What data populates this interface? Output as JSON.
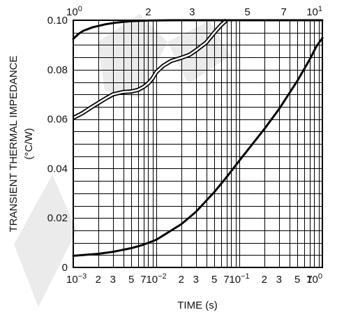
{
  "chart_data": {
    "type": "line",
    "ylabel_line1": "TRANSIENT THERMAL IMPEDANCE",
    "ylabel_line2": "(°C/W)",
    "xlabel": "TIME (s)",
    "ylim": [
      0,
      0.1
    ],
    "yticks": [
      {
        "value": 0,
        "label": "0"
      },
      {
        "value": 0.02,
        "label": "0.02"
      },
      {
        "value": 0.04,
        "label": "0.04"
      },
      {
        "value": 0.06,
        "label": "0.06"
      },
      {
        "value": 0.08,
        "label": "0.08"
      },
      {
        "value": 0.1,
        "label": "0.10"
      }
    ],
    "bottom_axis": {
      "scale": "log",
      "range": [
        0.001,
        1
      ],
      "labels": [
        {
          "value": 0.001,
          "base": "10",
          "exp": "−3"
        },
        {
          "value": 0.002,
          "base": "2"
        },
        {
          "value": 0.003,
          "base": "3"
        },
        {
          "value": 0.005,
          "base": "5"
        },
        {
          "value": 0.007,
          "base": "7"
        },
        {
          "value": 0.01,
          "base": "10",
          "exp": "−2"
        },
        {
          "value": 0.02,
          "base": "2"
        },
        {
          "value": 0.03,
          "base": "3"
        },
        {
          "value": 0.05,
          "base": "5"
        },
        {
          "value": 0.07,
          "base": "7"
        },
        {
          "value": 0.1,
          "base": "10",
          "exp": "−1"
        },
        {
          "value": 0.2,
          "base": "2"
        },
        {
          "value": 0.3,
          "base": "3"
        },
        {
          "value": 0.5,
          "base": "5"
        },
        {
          "value": 0.7,
          "base": "7"
        },
        {
          "value": 1,
          "base": "10",
          "exp": "0"
        }
      ]
    },
    "top_axis": {
      "scale": "log",
      "range": [
        1,
        10
      ],
      "labels": [
        {
          "value": 1,
          "base": "10",
          "exp": "0"
        },
        {
          "value": 2,
          "base": "2"
        },
        {
          "value": 3,
          "base": "3"
        },
        {
          "value": 5,
          "base": "5"
        },
        {
          "value": 7,
          "base": "7"
        },
        {
          "value": 10,
          "base": "10",
          "exp": "1"
        }
      ]
    },
    "grid": true,
    "series": [
      {
        "style": "solid",
        "axis": "bottom",
        "x": [
          0.001,
          0.002,
          0.003,
          0.005,
          0.007,
          0.01,
          0.02,
          0.03,
          0.05,
          0.07,
          0.1,
          0.2,
          0.3,
          0.5,
          0.7,
          0.85,
          1.0
        ],
        "y": [
          0.0047,
          0.0055,
          0.0063,
          0.0078,
          0.0092,
          0.0112,
          0.0175,
          0.0225,
          0.0305,
          0.0365,
          0.0432,
          0.056,
          0.064,
          0.0755,
          0.084,
          0.0895,
          0.0928
        ]
      },
      {
        "style": "hollow",
        "axis": "bottom",
        "x": [
          0.001,
          0.0013,
          0.0016,
          0.002,
          0.0025,
          0.003,
          0.004,
          0.005,
          0.006,
          0.007,
          0.008,
          0.009,
          0.01,
          0.012,
          0.015,
          0.02,
          0.025,
          0.03,
          0.04,
          0.05,
          0.06,
          0.07
        ],
        "y": [
          0.0605,
          0.0625,
          0.0645,
          0.0665,
          0.0685,
          0.07,
          0.071,
          0.0712,
          0.0718,
          0.073,
          0.0745,
          0.0765,
          0.079,
          0.0815,
          0.0835,
          0.0848,
          0.086,
          0.0878,
          0.091,
          0.095,
          0.098,
          0.1
        ]
      },
      {
        "style": "solid",
        "axis": "top",
        "x": [
          1.0,
          1.05,
          1.1,
          1.2,
          1.35,
          1.5,
          1.7,
          2.0,
          2.5,
          3.0,
          4.0,
          5.0,
          7.0,
          10.0
        ],
        "y": [
          0.0925,
          0.0945,
          0.0958,
          0.0972,
          0.0984,
          0.0991,
          0.0996,
          0.0999,
          0.1,
          0.1,
          0.1,
          0.1,
          0.1,
          0.1
        ]
      }
    ]
  }
}
